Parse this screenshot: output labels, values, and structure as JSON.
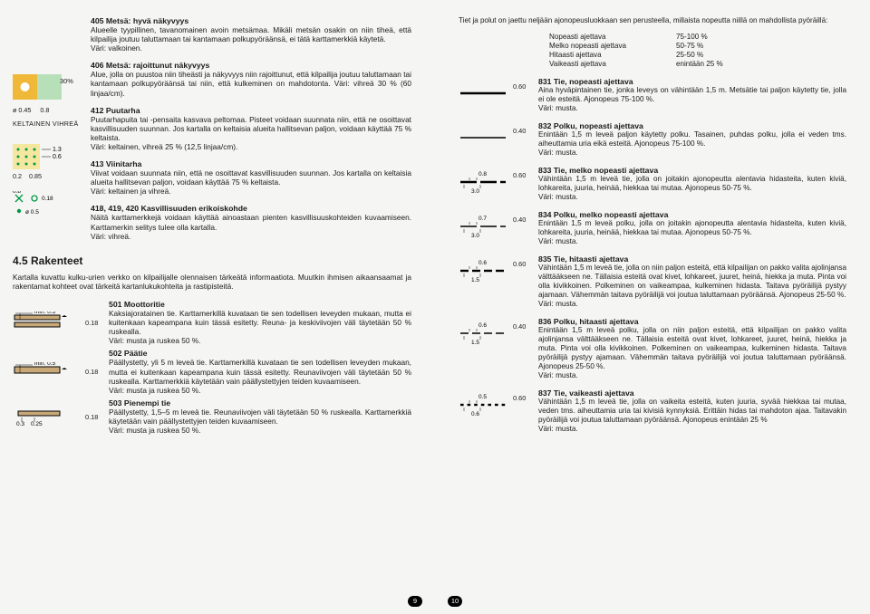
{
  "leftPage": {
    "block405": {
      "title": "405 Metsä: hyvä näkyvyys",
      "body": "Alueelle tyypillinen, tavanomainen avoin metsämaa. Mikäli metsän osakin on niin tiheä, että kilpailija joutuu taluttamaan tai kantamaan polkupyöräänsä, ei tätä karttamerkkiä käytetä.\nVäri: valkoinen."
    },
    "sym405": {
      "labels": [
        "ø 0.45",
        "0.8"
      ],
      "cap": "KELTAINEN  VIHREÄ",
      "colors": {
        "yellow": "#f0b838",
        "green": "#009944",
        "white": "#ffffff"
      }
    },
    "block406": {
      "title": "406 Metsä: rajoittunut näkyvyys",
      "body": "Alue, jolla on puustoa niin tiheästi ja näkyvyys niin rajoittunut, että kilpailija joutuu taluttamaan tai kantamaan polkupyöräänsä tai niin, että kulkeminen on mahdotonta. Väri: vihreä 30 % (60 linjaa/cm).",
      "pct": "30%"
    },
    "block412": {
      "title": "412 Puutarha",
      "body": "Puutarhapuita tai -pensaita kasvava peltomaa. Pisteet voidaan suunnata niin, että ne osoittavat kasvillisuuden suunnan. Jos kartalla on keltaisia alueita hallitsevan paljon, voidaan käyttää 75 % keltaista.\nVäri: keltainen, vihreä 25 % (12,5 linjaa/cm)."
    },
    "sym412": {
      "labels": [
        "1.3",
        "0.6",
        "0.2",
        "0.85"
      ],
      "colors": {
        "bg": "#f5e6a0",
        "dot": "#009944"
      }
    },
    "block413": {
      "title": "413 Viinitarha",
      "body": "Viivat voidaan suunnata niin, että ne osoittavat kasvillisuuden suunnan. Jos kartalla on keltaisia alueita hallitsevan paljon, voidaan käyttää 75 % keltaista.\nVäri: keltainen ja vihreä."
    },
    "sym418": {
      "labels": [
        "0.8",
        "0.18",
        "ø 0.5"
      ],
      "colors": {
        "green": "#009944"
      }
    },
    "block418": {
      "title": "418, 419, 420 Kasvillisuuden erikoiskohde",
      "body": "Näitä karttamerkkejä voidaan käyttää ainoastaan pienten kasvillisuuskohteiden kuvaamiseen. Karttamerkin selitys tulee olla kartalla.\nVäri: vihreä."
    },
    "sectionTitle": "4.5 Rakenteet",
    "sectionIntro": "Kartalla kuvattu kulku-urien verkko on kilpailijalle olennaisen tärkeätä informaatiota. Muutkin ihmisen aikaansaamat ja rakentamat kohteet ovat tärkeitä kartanlukukohteita ja rastipisteitä.",
    "road501": {
      "title": "501 Moottoritie",
      "body": "Kaksiajoratainen tie. Karttamerkillä kuvataan tie sen todellisen leveyden mukaan, mutta ei kuitenkaan kapeampana kuin tässä esitetty. Reuna- ja keskiviivojen väli täytetään 50 % ruskealla.\nVäri: musta ja ruskea 50 %.",
      "label": "0.18",
      "sym": "min. 0.3"
    },
    "road502": {
      "title": "502 Päätie",
      "body": "Päällystetty, yli 5 m leveä tie. Karttamerkillä kuvataan tie sen todellisen leveyden mukaan, mutta ei kuitenkaan kapeampana kuin tässä esitetty. Reunaviivojen väli täytetään 50 % ruskealla. Karttamerkkiä käytetään vain päällystettyjen teiden kuvaamiseen.\nVäri: musta ja ruskea 50 %.",
      "label": "0.18",
      "sym": "min. 0.5"
    },
    "road503": {
      "title": "503 Pienempi tie",
      "body": "Päällystetty, 1,5–5 m leveä tie. Reunaviivojen väli täytetään 50 % ruskealla. Karttamerkkiä käytetään vain päällystettyjen teiden kuvaamiseen.\nVäri: musta ja ruskea 50 %.",
      "label": "0.18",
      "sym": [
        "0.3",
        "0.25"
      ]
    },
    "roadColors": {
      "fill": "#c9a878",
      "stroke": "#000000"
    },
    "pageNum": "9"
  },
  "rightPage": {
    "intro": "Tiet ja polut on jaettu neljään ajonopeusluokkaan sen perusteella, millaista nopeutta niillä on mahdollista pyöräillä:",
    "speeds": [
      [
        "Nopeasti ajettava",
        "75-100 %"
      ],
      [
        "Melko nopeasti ajettava",
        "50-75 %"
      ],
      [
        "Hitaasti ajettava",
        "25-50 %"
      ],
      [
        "Vaikeasti ajettava",
        "enintään 25 %"
      ]
    ],
    "tracks": [
      {
        "id": "831",
        "lbl": "0.60",
        "title": "831 Tie, nopeasti ajettava",
        "body": "Aina hyväpintainen tie, jonka leveys on vähintään 1,5 m. Metsätie tai paljon käytetty tie, jolla ei ole esteitä. Ajonopeus 75-100 %.\nVäri: musta.",
        "dash": "solid",
        "w": 2.4
      },
      {
        "id": "832",
        "lbl": "0.40",
        "title": "832 Polku, nopeasti ajettava",
        "body": "Enintään 1,5 m leveä paljon käytetty polku. Tasainen, puhdas polku, jolla ei veden tms. aiheuttamia uria eikä esteitä. Ajonopeus 75-100 %.\nVäri: musta.",
        "dash": "solid",
        "w": 1.5
      },
      {
        "id": "833",
        "lbl": "0.60",
        "title": "833 Tie, melko nopeasti ajettava",
        "body": "Vähintään 1,5 m leveä tie, jolla on joitakin ajonopeutta alentavia hidasteita, kuten kiviä, lohkareita, juuria, heinää, hiekkaa tai mutaa. Ajonopeus 50-75 %.\nVäri: musta.",
        "dash": "3.0",
        "gapLabel": "0.8",
        "w": 2.4
      },
      {
        "id": "834",
        "lbl": "0.40",
        "title": "834 Polku, melko nopeasti ajettava",
        "body": "Enintään 1,5 m leveä polku, jolla on joitakin ajonopeutta alentavia hidasteita, kuten kiviä, lohkareita, juuria, heinää, hiekkaa tai mutaa. Ajonopeus 50-75 %.\nVäri: musta.",
        "dash": "3.0",
        "gapLabel": "0.7",
        "w": 1.5
      },
      {
        "id": "835",
        "lbl": "0.60",
        "title": "835 Tie, hitaasti ajettava",
        "body": "Vähintään 1,5 m leveä tie, jolla on niin paljon esteitä, että kilpailijan on pakko valita ajolinjansa välttääkseen ne. Tällaisia esteitä ovat kivet, lohkareet, juuret, heinä, hiekka ja muta. Pinta voi olla kivikkoinen. Polkeminen on vaikeampaa, kulkeminen hidasta. Taitava pyöräilijä pystyy ajamaan. Vähemmän taitava pyöräilijä voi joutua taluttamaan pyöräänsä. Ajonopeus 25-50 %.\nVäri: musta.",
        "dash": "1.5",
        "gapLabel": "0.6",
        "w": 2.4
      },
      {
        "id": "836",
        "lbl": "0.40",
        "title": "836 Polku, hitaasti ajettava",
        "body": "Enintään 1,5 m leveä polku, jolla on niin paljon esteitä, että kilpailijan on pakko valita ajolinjansa välttääkseen ne. Tällaisia esteitä ovat kivet, lohkareet, juuret, heinä, hiekka ja muta. Pinta voi olla kivikkoinen. Polkeminen on vaikeampaa, kulkeminen hidasta. Taitava pyöräilijä pystyy ajamaan. Vähemmän taitava pyöräilijä voi joutua taluttamaan pyöräänsä. Ajonopeus 25-50 %.\nVäri: musta.",
        "dash": "1.5",
        "gapLabel": "0.6",
        "w": 1.5
      },
      {
        "id": "837",
        "lbl": "0.60",
        "title": "837 Tie, vaikeasti ajettava",
        "body": "Vähintään 1,5 m leveä tie, jolla on vaikeita esteitä, kuten juuria, syvää hiekkaa tai mutaa, veden tms. aiheuttamia uria tai kivisiä kynnyksiä. Erittäin hidas tai mahdoton ajaa. Taitavakin pyöräilijä voi joutua taluttamaan pyöräänsä. Ajonopeus enintään 25 %\nVäri: musta.",
        "dash": "0.6",
        "gapLabel": "0.5",
        "w": 2.4
      }
    ],
    "pageNum": "10"
  }
}
